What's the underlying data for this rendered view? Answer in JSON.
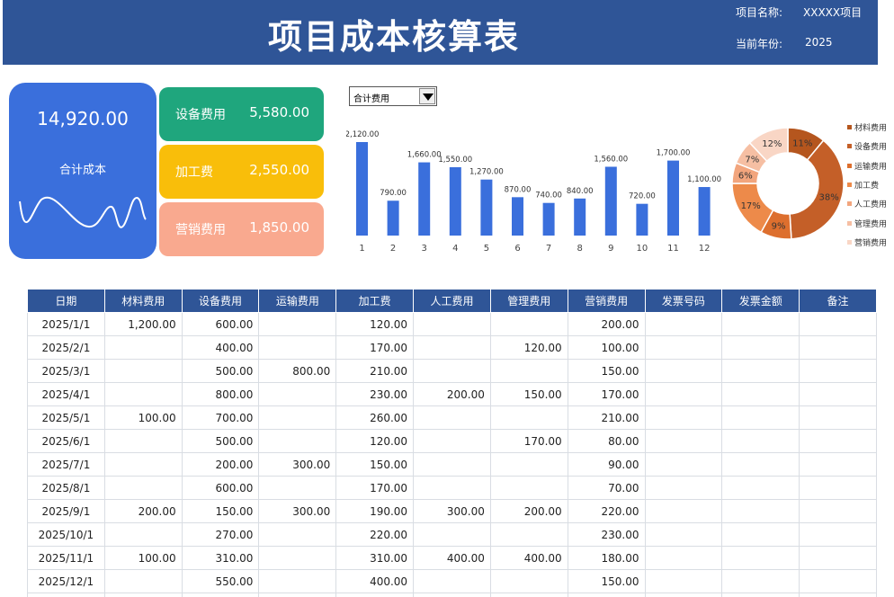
{
  "header": {
    "title": "项目成本核算表",
    "project_label": "项目名称:",
    "project_value": "XXXXX项目",
    "year_label": "当前年份:",
    "year_value": "2025"
  },
  "total": {
    "amount": "14,920.00",
    "label": "合计成本"
  },
  "cards": [
    {
      "label": "设备费用",
      "value": "5,580.00"
    },
    {
      "label": "加工费",
      "value": "2,550.00"
    },
    {
      "label": "营销费用",
      "value": "1,850.00"
    }
  ],
  "dropdown": {
    "selected": "合计费用"
  },
  "chart_data": [
    {
      "type": "bar",
      "categories": [
        "1",
        "2",
        "3",
        "4",
        "5",
        "6",
        "7",
        "8",
        "9",
        "10",
        "11",
        "12"
      ],
      "values": [
        2120,
        790,
        1660,
        1550,
        1270,
        870,
        740,
        840,
        1560,
        720,
        1700,
        1100
      ],
      "labels": [
        "2,120.00",
        "790.00",
        "1,660.00",
        "1,550.00",
        "1,270.00",
        "870.00",
        "740.00",
        "840.00",
        "1,560.00",
        "720.00",
        "1,700.00",
        "1,100.00"
      ],
      "color": "#3a6fdc"
    },
    {
      "type": "pie",
      "categories": [
        "材料费用",
        "设备费用",
        "运输费用",
        "加工费",
        "人工费用",
        "管理费用",
        "营销费用"
      ],
      "values": [
        11,
        38,
        9,
        17,
        6,
        7,
        12
      ],
      "labels": [
        "11%",
        "38%",
        "9%",
        "17%",
        "6%",
        "7%",
        "12%"
      ],
      "colors": [
        "#b5561e",
        "#c45f28",
        "#dd6f2e",
        "#ed8a4a",
        "#f2a57d",
        "#f6bfa3",
        "#f9d6c5"
      ]
    }
  ],
  "table": {
    "headers": [
      "日期",
      "材料费用",
      "设备费用",
      "运输费用",
      "加工费",
      "人工费用",
      "管理费用",
      "营销费用",
      "发票号码",
      "发票金额",
      "备注"
    ],
    "rows": [
      [
        "2025/1/1",
        "1,200.00",
        "600.00",
        "",
        "120.00",
        "",
        "",
        "200.00",
        "",
        "",
        ""
      ],
      [
        "2025/2/1",
        "",
        "400.00",
        "",
        "170.00",
        "",
        "120.00",
        "100.00",
        "",
        "",
        ""
      ],
      [
        "2025/3/1",
        "",
        "500.00",
        "800.00",
        "210.00",
        "",
        "",
        "150.00",
        "",
        "",
        ""
      ],
      [
        "2025/4/1",
        "",
        "800.00",
        "",
        "230.00",
        "200.00",
        "150.00",
        "170.00",
        "",
        "",
        ""
      ],
      [
        "2025/5/1",
        "100.00",
        "700.00",
        "",
        "260.00",
        "",
        "",
        "210.00",
        "",
        "",
        ""
      ],
      [
        "2025/6/1",
        "",
        "500.00",
        "",
        "120.00",
        "",
        "170.00",
        "80.00",
        "",
        "",
        ""
      ],
      [
        "2025/7/1",
        "",
        "200.00",
        "300.00",
        "150.00",
        "",
        "",
        "90.00",
        "",
        "",
        ""
      ],
      [
        "2025/8/1",
        "",
        "600.00",
        "",
        "170.00",
        "",
        "",
        "70.00",
        "",
        "",
        ""
      ],
      [
        "2025/9/1",
        "200.00",
        "150.00",
        "300.00",
        "190.00",
        "300.00",
        "200.00",
        "220.00",
        "",
        "",
        ""
      ],
      [
        "2025/10/1",
        "",
        "270.00",
        "",
        "220.00",
        "",
        "",
        "230.00",
        "",
        "",
        ""
      ],
      [
        "2025/11/1",
        "100.00",
        "310.00",
        "",
        "310.00",
        "400.00",
        "400.00",
        "180.00",
        "",
        "",
        ""
      ],
      [
        "2025/12/1",
        "",
        "550.00",
        "",
        "400.00",
        "",
        "",
        "150.00",
        "",
        "",
        ""
      ],
      [
        "",
        "",
        "",
        "",
        "",
        "",
        "",
        "",
        "",
        "",
        ""
      ]
    ]
  }
}
